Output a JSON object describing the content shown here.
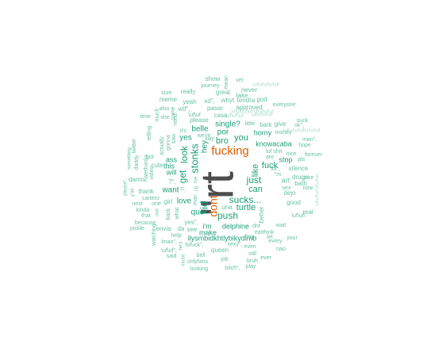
{
  "word_cloud": {
    "colors": {
      "primary": "#4d4d4d",
      "accent": "#d95f02",
      "frequent": "#1b9e77",
      "common": "#66c2a5",
      "rare": "#a8dcc9"
    },
    "words": [
      {
        "text": "\"rt",
        "tier": "primary"
      },
      {
        "text": "fucking",
        "tier": "accent"
      },
      {
        "text": "dont",
        "tier": "accent"
      },
      {
        "text": "stonks",
        "tier": "frequent"
      },
      {
        "text": "kid",
        "tier": "frequent"
      },
      {
        "text": "push",
        "tier": "frequent"
      },
      {
        "text": "sucks...",
        "tier": "frequent"
      },
      {
        "text": "just",
        "tier": "frequent"
      },
      {
        "text": "look",
        "tier": "frequent"
      },
      {
        "text": "get",
        "tier": "frequent"
      },
      {
        "text": "bro",
        "tier": "frequent"
      },
      {
        "text": "you",
        "tier": "frequent"
      },
      {
        "text": "can",
        "tier": "frequent"
      },
      {
        "text": "turtle",
        "tier": "frequent"
      },
      {
        "text": "fuck",
        "tier": "frequent"
      },
      {
        "text": "like",
        "tier": "frequent"
      },
      {
        "text": "por",
        "tier": "frequent"
      },
      {
        "text": "single?",
        "tier": "frequent"
      },
      {
        "text": "belle",
        "tier": "frequent"
      },
      {
        "text": "want",
        "tier": "frequent"
      },
      {
        "text": "love",
        "tier": "frequent"
      },
      {
        "text": "que",
        "tier": "frequent"
      },
      {
        "text": "yes",
        "tier": "frequent"
      },
      {
        "text": "hey",
        "tier": "frequent"
      },
      {
        "text": "i'm",
        "tier": "frequent"
      },
      {
        "text": "ass",
        "tier": "frequent"
      },
      {
        "text": "will",
        "tier": "frequent"
      },
      {
        "text": "make",
        "tier": "frequent"
      },
      {
        "text": "ilysmbidkhtlybikydlmb",
        "tier": "frequent"
      },
      {
        "text": "knowacaba",
        "tier": "frequent"
      },
      {
        "text": "delphine",
        "tier": "frequent"
      },
      {
        "text": "horny",
        "tier": "frequent"
      },
      {
        "text": "this",
        "tier": "frequent"
      },
      {
        "text": "stop",
        "tier": "frequent"
      },
      {
        "text": "never",
        "tier": "common"
      },
      {
        "text": "take",
        "tier": "common"
      },
      {
        "text": "tendra",
        "tier": "common"
      },
      {
        "text": "god",
        "tier": "common"
      },
      {
        "text": "everyone",
        "tier": "common"
      },
      {
        "text": "approved",
        "tier": "common"
      },
      {
        "text": "really",
        "tier": "common"
      },
      {
        "text": "great",
        "tier": "common"
      },
      {
        "text": "whyt",
        "tier": "common"
      },
      {
        "text": "meme",
        "tier": "common"
      },
      {
        "text": "yeah",
        "tier": "common"
      },
      {
        "text": "xd\",",
        "tier": "common"
      },
      {
        "text": "sure",
        "tier": "common"
      },
      {
        "text": "show",
        "tier": "common"
      },
      {
        "text": "journey",
        "tier": "common"
      },
      {
        "text": "ver",
        "tier": "common"
      },
      {
        "text": "mean",
        "tier": "common"
      },
      {
        "text": "casa",
        "tier": "common"
      },
      {
        "text": "pasar",
        "tier": "common"
      },
      {
        "text": "please",
        "tier": "common"
      },
      {
        "text": "wtf\",",
        "tier": "common"
      },
      {
        "text": "also",
        "tier": "common"
      },
      {
        "text": "time",
        "tier": "common"
      },
      {
        "text": "little",
        "tier": "common"
      },
      {
        "text": "bark",
        "tier": "common"
      },
      {
        "text": "give",
        "tier": "common"
      },
      {
        "text": "ok\",",
        "tier": "common"
      },
      {
        "text": "money",
        "tier": "common"
      },
      {
        "text": "suck",
        "tier": "common"
      },
      {
        "text": "man\",",
        "tier": "common"
      },
      {
        "text": "hope",
        "tier": "common"
      },
      {
        "text": "nice",
        "tier": "common"
      },
      {
        "text": "forever",
        "tier": "common"
      },
      {
        "text": "silence",
        "tier": "common"
      },
      {
        "text": "lol\",",
        "tier": "common"
      },
      {
        "text": "art",
        "tier": "common"
      },
      {
        "text": "drugs",
        "tier": "common"
      },
      {
        "text": "bath",
        "tier": "common"
      },
      {
        "text": "dejo",
        "tier": "common"
      },
      {
        "text": "joke",
        "tier": "common"
      },
      {
        "text": "good",
        "tier": "common"
      },
      {
        "text": "now",
        "tier": "common"
      },
      {
        "text": "real",
        "tier": "common"
      },
      {
        "text": "sex",
        "tier": "common"
      },
      {
        "text": "wait",
        "tier": "common"
      },
      {
        "text": "pls",
        "tier": "common"
      },
      {
        "text": "your",
        "tier": "common"
      },
      {
        "text": "nao",
        "tier": "common"
      },
      {
        "text": "every",
        "tier": "common"
      },
      {
        "text": "eatthink",
        "tier": "common"
      },
      {
        "text": "better",
        "tier": "common"
      },
      {
        "text": "ever",
        "tier": "common"
      },
      {
        "text": "still",
        "tier": "common"
      },
      {
        "text": "bruh",
        "tier": "common"
      },
      {
        "text": "even",
        "tier": "common"
      },
      {
        "text": "sexy\",",
        "tier": "common"
      },
      {
        "text": "play",
        "tier": "common"
      },
      {
        "text": "bitch\",",
        "tier": "common"
      },
      {
        "text": "job",
        "tier": "common"
      },
      {
        "text": "queen",
        "tier": "common"
      },
      {
        "text": "bell",
        "tier": "common"
      },
      {
        "text": "\\uf\\uf\",",
        "tier": "common"
      },
      {
        "text": "onlyfans",
        "tier": "common"
      },
      {
        "text": "looking",
        "tier": "common"
      },
      {
        "text": "said",
        "tier": "common"
      },
      {
        "text": "lmao\",",
        "tier": "common"
      },
      {
        "text": "help",
        "tier": "common"
      },
      {
        "text": "fofuck\",",
        "tier": "common"
      },
      {
        "text": "see",
        "tier": "common"
      },
      {
        "text": "watching",
        "tier": "common"
      },
      {
        "text": "envia",
        "tier": "common"
      },
      {
        "text": "da",
        "tier": "common"
      },
      {
        "text": "pickle",
        "tier": "common"
      },
      {
        "text": "because",
        "tier": "common"
      },
      {
        "text": "that",
        "tier": "common"
      },
      {
        "text": "kinda",
        "tier": "common"
      },
      {
        "text": "next",
        "tier": "common"
      },
      {
        "text": "one",
        "tier": "common"
      },
      {
        "text": "girl",
        "tier": "common"
      },
      {
        "text": "thank",
        "tier": "common"
      },
      {
        "text": "cartero",
        "tier": "common"
      },
      {
        "text": "damn",
        "tier": "common"
      },
      {
        "text": "please\",",
        "tier": "common"
      },
      {
        "text": "y'all",
        "tier": "common"
      },
      {
        "text": "daddy",
        "tier": "common"
      },
      {
        "text": "something",
        "tier": "common"
      },
      {
        "text": "twitter",
        "tier": "common"
      },
      {
        "text": "cute",
        "tier": "common"
      },
      {
        "text": "video",
        "tier": "common"
      },
      {
        "text": "hate",
        "tier": "common"
      },
      {
        "text": "thanks",
        "tier": "common"
      },
      {
        "text": "gonna",
        "tier": "common"
      },
      {
        "text": "got",
        "tier": "common"
      },
      {
        "text": "actually",
        "tier": "common"
      },
      {
        "text": "telling",
        "tier": "common"
      },
      {
        "text": "saw",
        "tier": "common"
      },
      {
        "text": "need",
        "tier": "common"
      },
      {
        "text": "come",
        "tier": "common"
      },
      {
        "text": "much",
        "tier": "common"
      },
      {
        "text": "she",
        "tier": "common"
      },
      {
        "text": "\\uf\\uf",
        "tier": "common"
      },
      {
        "text": "\\uf shit",
        "tier": "common"
      },
      {
        "text": "\\uf\\uf\\",
        "tier": "common"
      },
      {
        "text": "say",
        "tier": "common"
      },
      {
        "text": "we're",
        "tier": "common"
      },
      {
        "text": "it's",
        "tier": "common"
      },
      {
        "text": "back",
        "tier": "common"
      },
      {
        "text": "what",
        "tier": "common"
      },
      {
        "text": "i'll",
        "tier": "common"
      },
      {
        "text": "man",
        "tier": "common"
      },
      {
        "text": "yes\",",
        "tier": "common"
      },
      {
        "text": "are",
        "tier": "common"
      },
      {
        "text": "let",
        "tier": "common"
      },
      {
        "text": "big",
        "tier": "common"
      },
      {
        "text": "dnt",
        "tier": "common"
      },
      {
        "text": "una",
        "tier": "common"
      },
      {
        "text": "con",
        "tier": "common"
      },
      {
        "text": "rt",
        "tier": "common"
      },
      {
        "text": "?\",",
        "tier": "common"
      },
      {
        "text": "...",
        "tier": "common"
      },
      {
        "text": "\"m",
        "tier": "common"
      },
      {
        "text": "i've",
        "tier": "common"
      },
      {
        "text": "music",
        "tier": "common"
      },
      {
        "text": "he's",
        "tier": "common"
      },
      {
        "text": "\\uf\\uf\\uf",
        "tier": "rare"
      },
      {
        "text": "\\uf\\uf\\uf\\uf",
        "tier": "rare"
      },
      {
        "text": "\\uf\\uf\\uf\\uf\\uf",
        "tier": "rare"
      },
      {
        "text": "\\uf\\uf\\uf\\uf\\uf\\uf",
        "tier": "rare"
      },
      {
        "text": "\\uf\\uf\\uf\\uf\\uf\\uf\\uf",
        "tier": "rare"
      },
      {
        "text": "\\uf\\uf\\uf\\uf\\uf\\uf\\uf\\uf",
        "tier": "rare"
      }
    ]
  }
}
